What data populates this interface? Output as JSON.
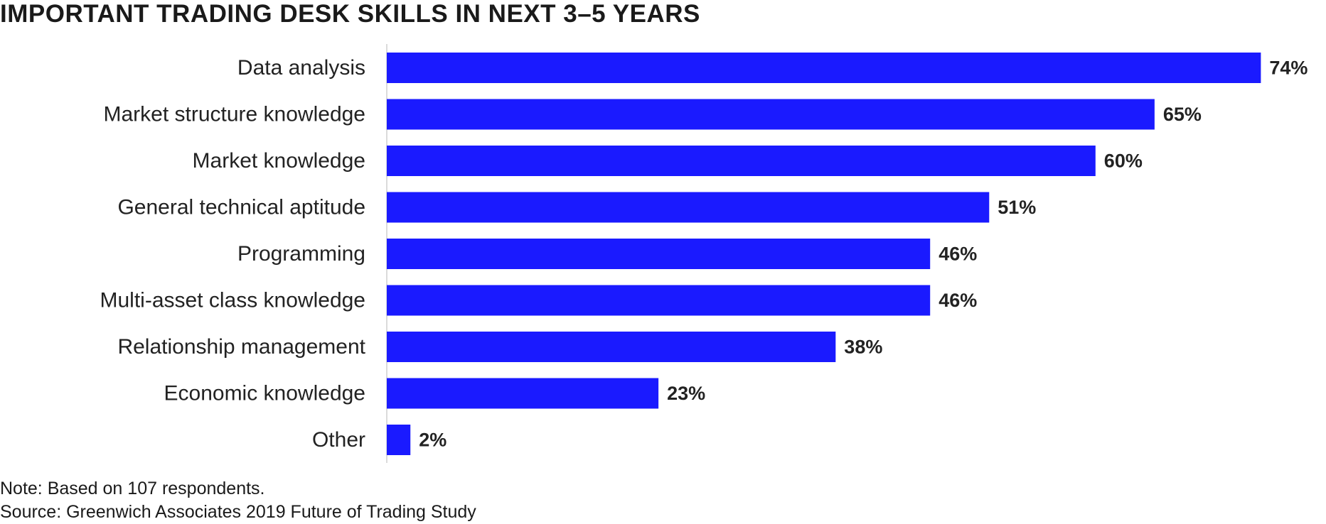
{
  "chart_data": {
    "type": "bar",
    "orientation": "horizontal",
    "title": "IMPORTANT TRADING DESK SKILLS IN NEXT 3–5 YEARS",
    "categories": [
      "Data analysis",
      "Market structure knowledge",
      "Market knowledge",
      "General technical aptitude",
      "Programming",
      "Multi-asset class knowledge",
      "Relationship management",
      "Economic knowledge",
      "Other"
    ],
    "values": [
      74,
      65,
      60,
      51,
      46,
      46,
      38,
      23,
      2
    ],
    "value_labels": [
      "74%",
      "65%",
      "60%",
      "51%",
      "46%",
      "46%",
      "38%",
      "23%",
      "2%"
    ],
    "unit": "%",
    "xlim": [
      0,
      75
    ],
    "bar_color": "#1a1aff",
    "grid": false,
    "legend": "none"
  },
  "footnotes": {
    "note": "Note: Based on 107 respondents.",
    "source": "Source: Greenwich Associates 2019 Future of Trading Study"
  }
}
